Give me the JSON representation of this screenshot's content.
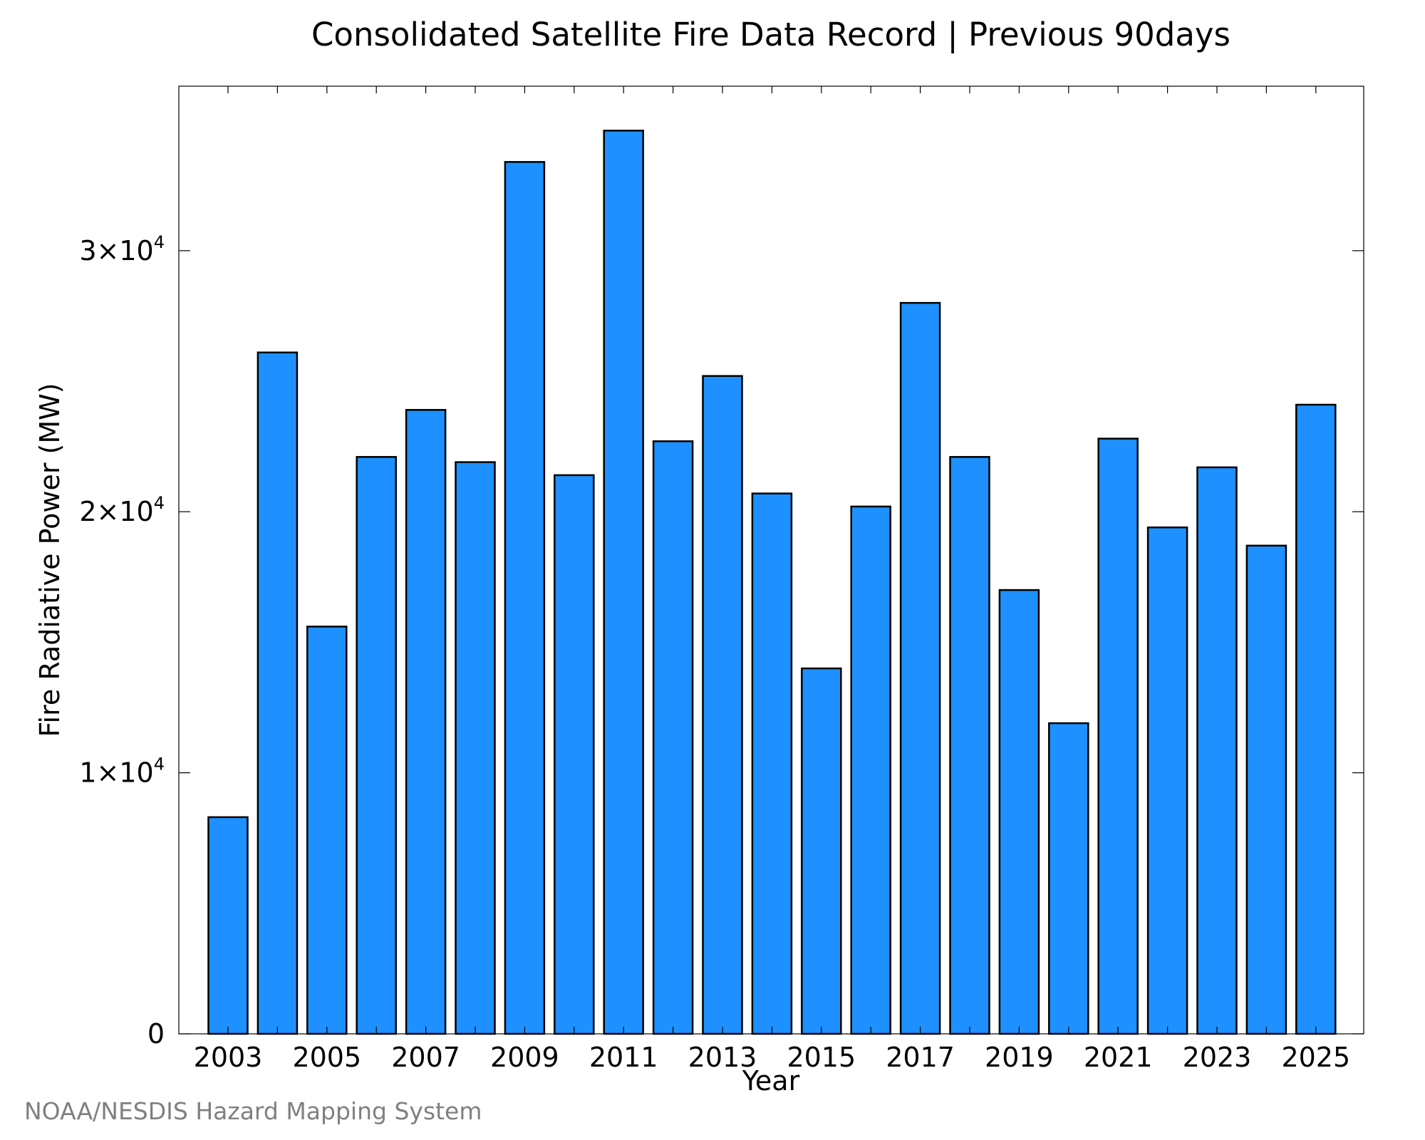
{
  "chart_data": {
    "type": "bar",
    "title": "Consolidated Satellite Fire Data Record | Previous 90days",
    "xlabel": "Year",
    "ylabel": "Fire Radiative Power (MW)",
    "categories": [
      "2003",
      "2004",
      "2005",
      "2006",
      "2007",
      "2008",
      "2009",
      "2010",
      "2011",
      "2012",
      "2013",
      "2014",
      "2015",
      "2016",
      "2017",
      "2018",
      "2019",
      "2020",
      "2021",
      "2022",
      "2023",
      "2024",
      "2025"
    ],
    "values": [
      8300,
      26100,
      15600,
      22100,
      23900,
      21900,
      33400,
      21400,
      34600,
      22700,
      25200,
      20700,
      14000,
      20200,
      28000,
      22100,
      17000,
      11900,
      22800,
      19400,
      21700,
      18700,
      24100
    ],
    "ylim": [
      0,
      36300
    ],
    "yticks": [
      {
        "value": 0,
        "mantissa": "0",
        "exp": ""
      },
      {
        "value": 10000,
        "mantissa": "1×10",
        "exp": "4"
      },
      {
        "value": 20000,
        "mantissa": "2×10",
        "exp": "4"
      },
      {
        "value": 30000,
        "mantissa": "3×10",
        "exp": "4"
      }
    ],
    "xtick_labels": [
      "2003",
      "2005",
      "2007",
      "2009",
      "2011",
      "2013",
      "2015",
      "2017",
      "2019",
      "2021",
      "2023",
      "2025"
    ],
    "bar_color": "#1e90ff",
    "grid": false
  },
  "credit": "NOAA/NESDIS Hazard Mapping System"
}
